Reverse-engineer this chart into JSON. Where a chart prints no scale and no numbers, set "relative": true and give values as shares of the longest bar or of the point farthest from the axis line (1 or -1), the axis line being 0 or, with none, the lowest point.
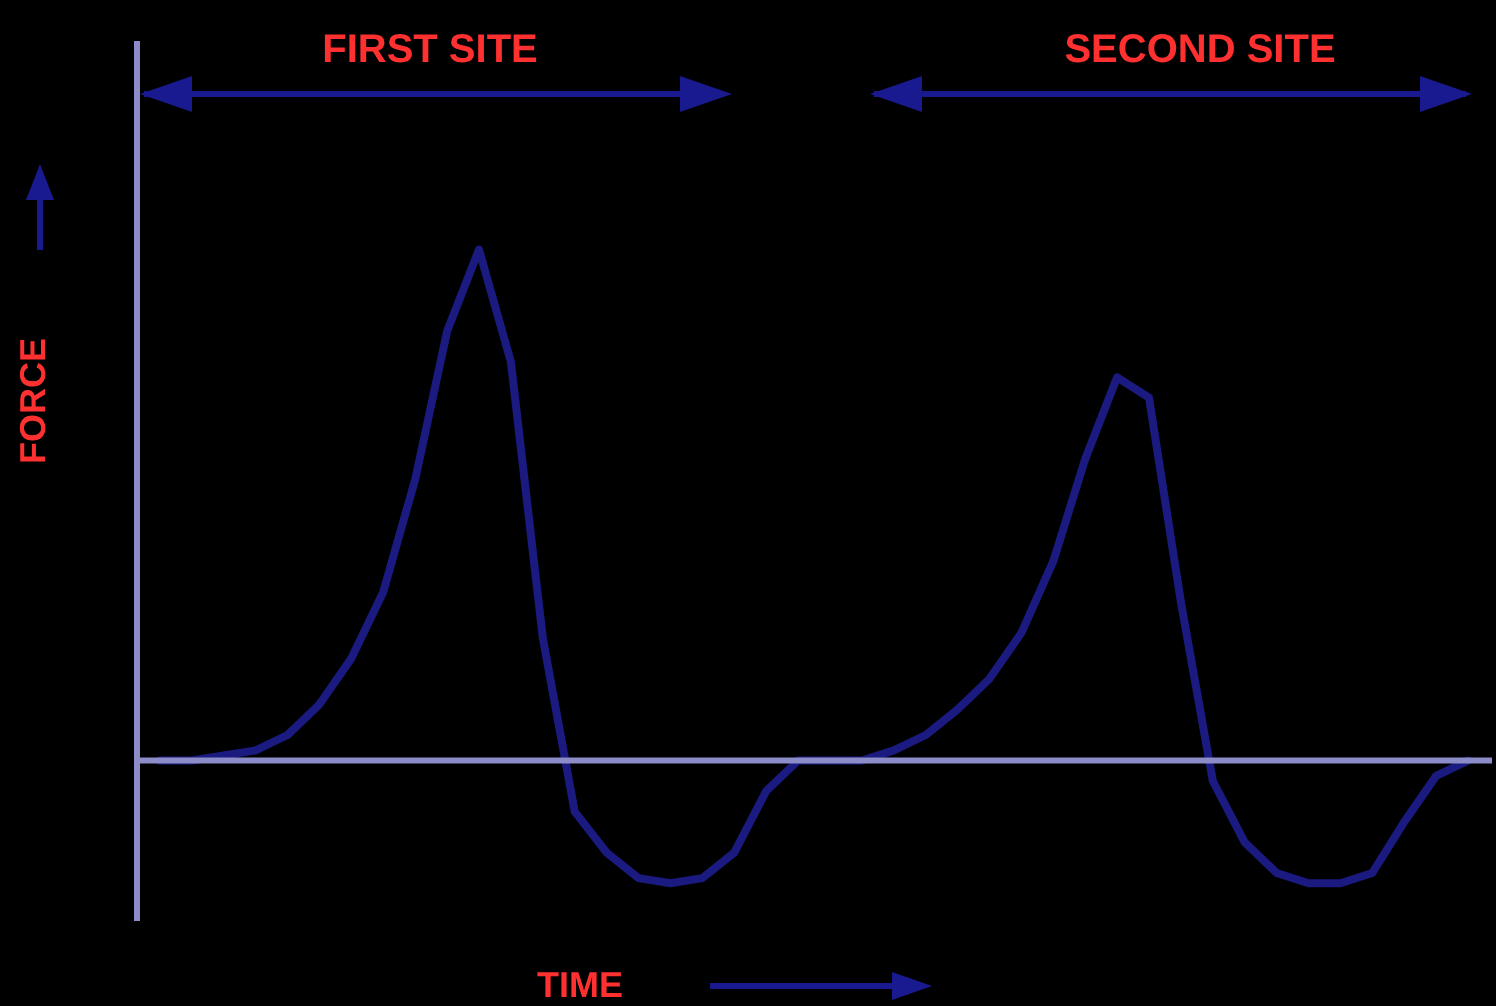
{
  "chart_data": {
    "type": "line",
    "relative": true,
    "xlabel": "TIME",
    "ylabel": "FORCE",
    "annotations": [
      "FIRST SITE",
      "SECOND SITE"
    ],
    "categories": [
      null,
      null,
      null,
      null,
      null,
      null,
      null,
      null,
      null,
      null,
      null,
      null,
      null,
      null,
      null,
      null,
      null,
      null,
      null,
      null,
      null,
      null,
      null,
      null,
      null,
      null,
      null,
      null,
      null,
      null,
      null,
      null,
      null,
      null,
      null,
      null,
      null,
      null,
      null,
      null,
      null,
      null
    ],
    "series": [
      {
        "color": "#1a1a80",
        "values": [
          0,
          0,
          0.01,
          0.02,
          0.05,
          0.11,
          0.2,
          0.33,
          0.55,
          0.84,
          1,
          0.78,
          0.24,
          -0.1,
          -0.18,
          -0.23,
          -0.24,
          -0.23,
          -0.18,
          -0.06,
          0,
          0,
          0,
          0.02,
          0.05,
          0.1,
          0.16,
          0.25,
          0.39,
          0.59,
          0.75,
          0.71,
          0.31,
          -0.04,
          -0.16,
          -0.22,
          -0.24,
          -0.24,
          -0.22,
          -0.12,
          -0.03,
          0
        ]
      }
    ],
    "ref_lines": [
      {
        "axis": "y",
        "value": 0,
        "color": "#8c8cc8"
      }
    ],
    "grid": false,
    "legend": false,
    "marker": "none",
    "line_style": "solid"
  }
}
